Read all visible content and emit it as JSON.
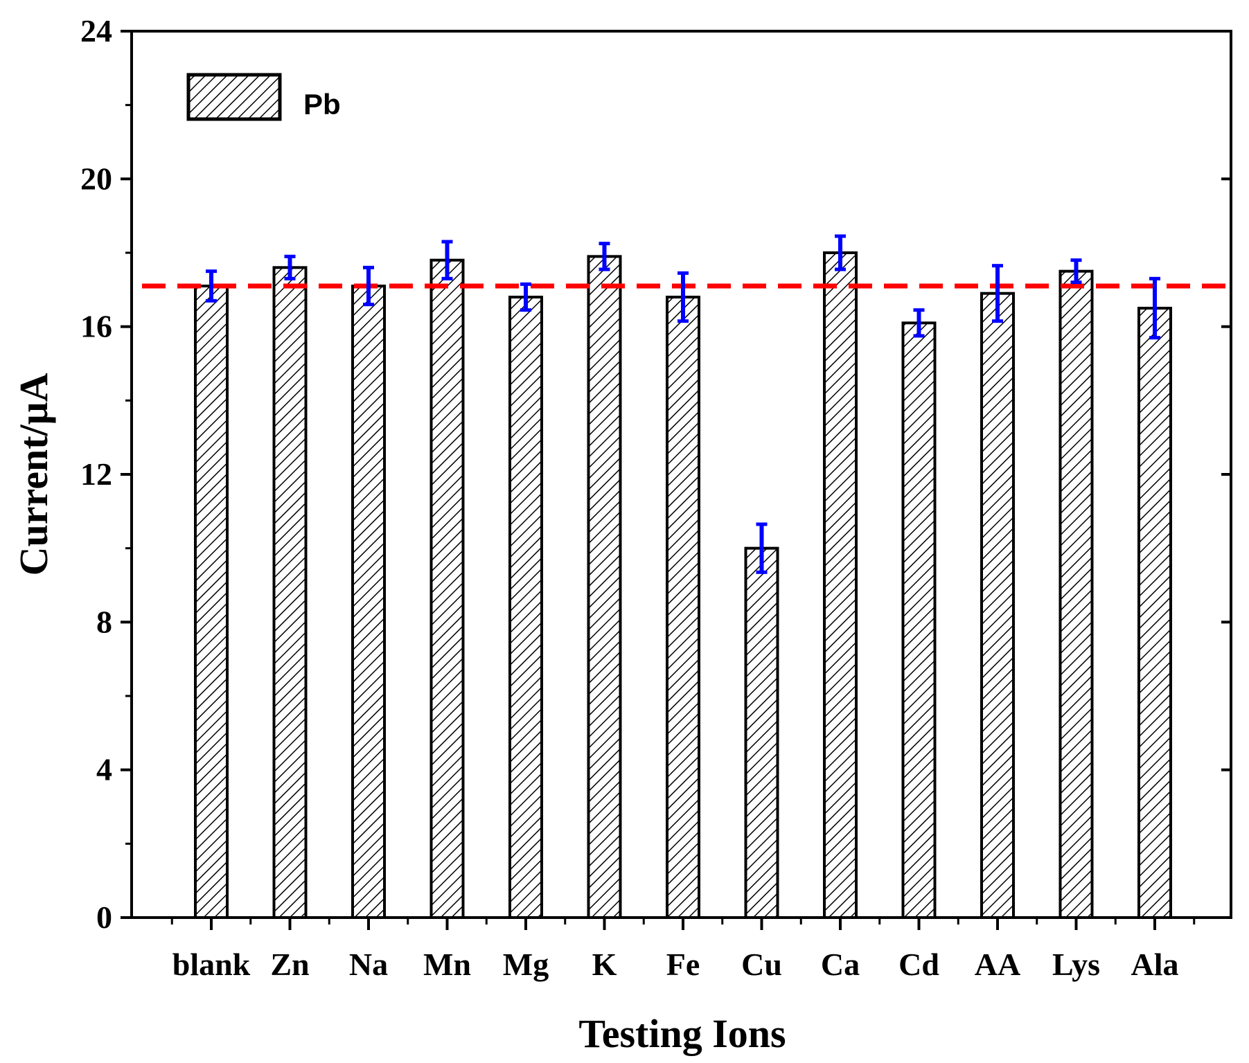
{
  "chart_data": {
    "type": "bar",
    "title": "",
    "xlabel": "Testing Ions",
    "ylabel": "Current/μA",
    "ylim": [
      0,
      24
    ],
    "yticks": [
      0,
      4,
      8,
      12,
      16,
      20,
      24
    ],
    "categories": [
      "blank",
      "Zn",
      "Na",
      "Mn",
      "Mg",
      "K",
      "Fe",
      "Cu",
      "Ca",
      "Cd",
      "AA",
      "Lys",
      "Ala"
    ],
    "series": [
      {
        "name": "Pb",
        "values": [
          17.1,
          17.6,
          17.1,
          17.8,
          16.8,
          17.9,
          16.8,
          10.0,
          18.0,
          16.1,
          16.9,
          17.5,
          16.5
        ],
        "errors": [
          0.4,
          0.3,
          0.5,
          0.5,
          0.35,
          0.35,
          0.65,
          0.65,
          0.45,
          0.35,
          0.75,
          0.3,
          0.8
        ]
      }
    ],
    "reference_line": {
      "value": 17.1,
      "style": "dashed",
      "color": "#ff0000"
    },
    "legend": {
      "position": "top-left",
      "entries": [
        "Pb"
      ]
    },
    "grid": false,
    "colors": {
      "bar_fill_pattern": "hatched",
      "error_bar": "#0000ff",
      "axis": "#000000"
    }
  }
}
